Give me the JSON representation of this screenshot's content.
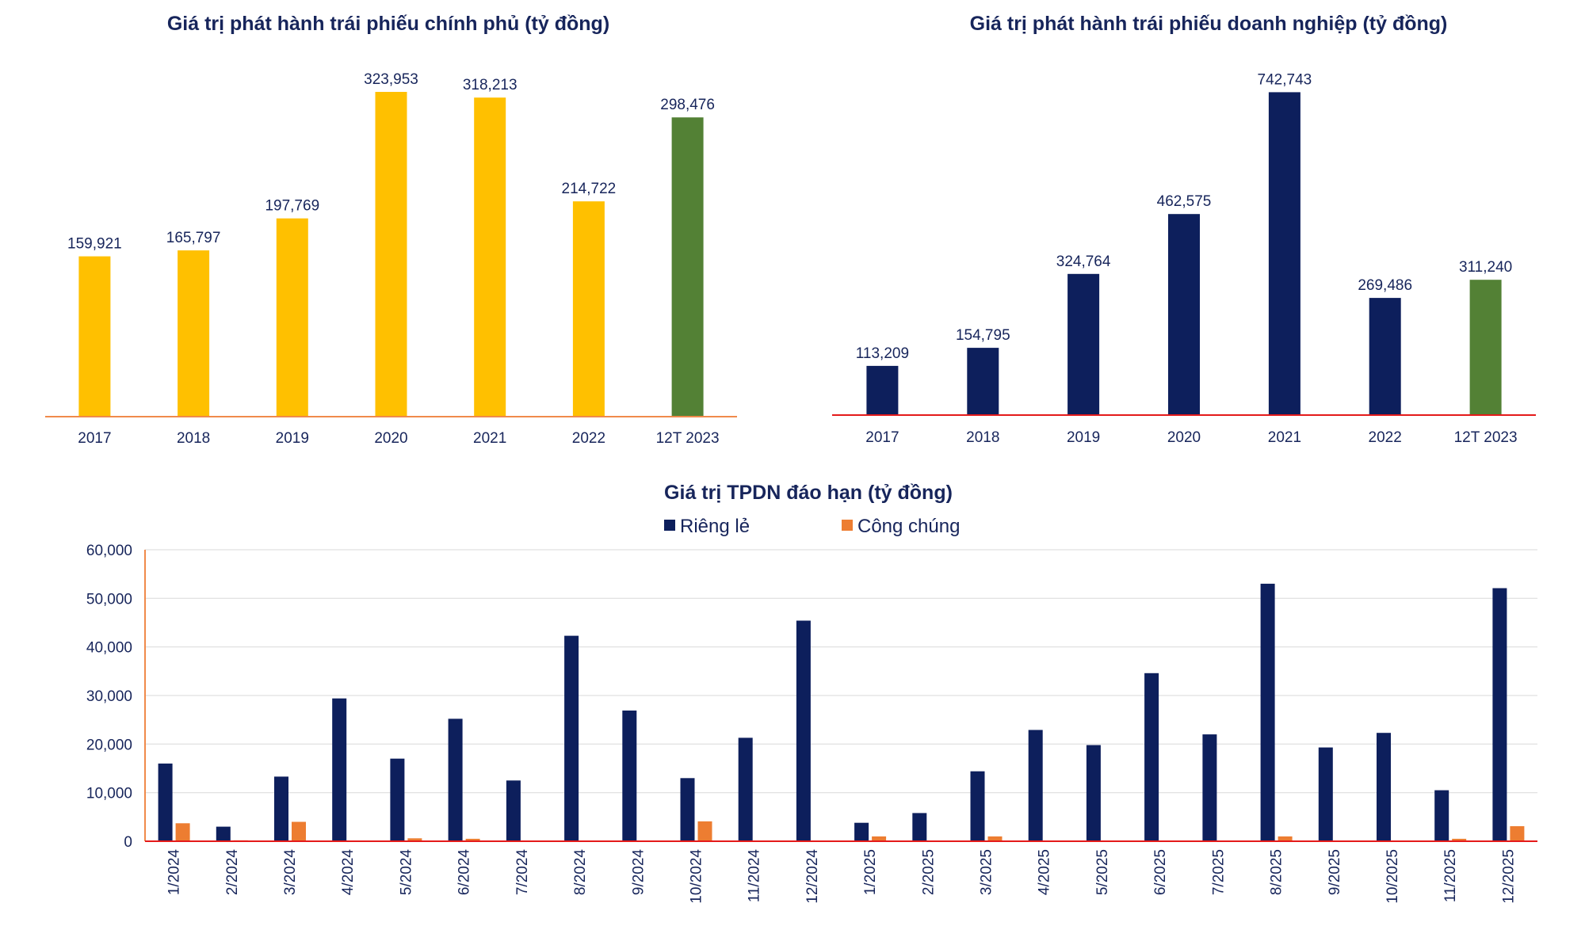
{
  "colors": {
    "gov_bar": "#ffc000",
    "corp_bar": "#0d1f5c",
    "highlight_bar": "#538135",
    "axis_line_orange": "#f08a4b",
    "axis_line_red": "#e41a1a",
    "rieng_le": "#0d1f5c",
    "cong_chung": "#ed7d31",
    "grid": "#d9d9d9"
  },
  "chart_data": [
    {
      "type": "bar",
      "title": "Giá trị phát hành trái phiếu chính phủ (tỷ đồng)",
      "categories": [
        "2017",
        "2018",
        "2019",
        "2020",
        "2021",
        "2022",
        "12T 2023"
      ],
      "values": [
        159921,
        165797,
        197769,
        323953,
        318213,
        214722,
        298476
      ],
      "value_labels": [
        "159,921",
        "165,797",
        "197,769",
        "323,953",
        "318,213",
        "214,722",
        "298,476"
      ],
      "highlight_index": 6,
      "ylim": [
        0,
        350000
      ],
      "xlabel": "",
      "ylabel": ""
    },
    {
      "type": "bar",
      "title": "Giá trị phát hành trái phiếu doanh nghiệp (tỷ đồng)",
      "categories": [
        "2017",
        "2018",
        "2019",
        "2020",
        "2021",
        "2022",
        "12T 2023"
      ],
      "values": [
        113209,
        154795,
        324764,
        462575,
        742743,
        269486,
        311240
      ],
      "value_labels": [
        "113,209",
        "154,795",
        "324,764",
        "462,575",
        "742,743",
        "269,486",
        "311,240"
      ],
      "highlight_index": 6,
      "ylim": [
        0,
        800000
      ],
      "xlabel": "",
      "ylabel": ""
    },
    {
      "type": "bar",
      "title": "Giá trị TPDN đáo hạn (tỷ đồng)",
      "categories": [
        "1/2024",
        "2/2024",
        "3/2024",
        "4/2024",
        "5/2024",
        "6/2024",
        "7/2024",
        "8/2024",
        "9/2024",
        "10/2024",
        "11/2024",
        "12/2024",
        "1/2025",
        "2/2025",
        "3/2025",
        "4/2025",
        "5/2025",
        "6/2025",
        "7/2025",
        "8/2025",
        "9/2025",
        "10/2025",
        "11/2025",
        "12/2025"
      ],
      "series": [
        {
          "name": "Riêng lẻ",
          "values": [
            16000,
            3000,
            13300,
            29400,
            17000,
            25200,
            12500,
            42300,
            26900,
            13000,
            21300,
            45400,
            3800,
            5800,
            14400,
            22900,
            19800,
            34600,
            22000,
            53000,
            19300,
            22300,
            10500,
            52100
          ]
        },
        {
          "name": "Công chúng",
          "values": [
            3700,
            200,
            4000,
            0,
            600,
            500,
            0,
            0,
            0,
            4100,
            0,
            0,
            1000,
            0,
            1000,
            0,
            0,
            0,
            0,
            1000,
            0,
            0,
            500,
            3100
          ]
        }
      ],
      "yticks": [
        0,
        10000,
        20000,
        30000,
        40000,
        50000,
        60000
      ],
      "ytick_labels": [
        "0",
        "10,000",
        "20,000",
        "30,000",
        "40,000",
        "50,000",
        "60,000"
      ],
      "ylim": [
        0,
        60000
      ],
      "legend_position": "top",
      "grid": true,
      "xlabel": "",
      "ylabel": ""
    }
  ]
}
